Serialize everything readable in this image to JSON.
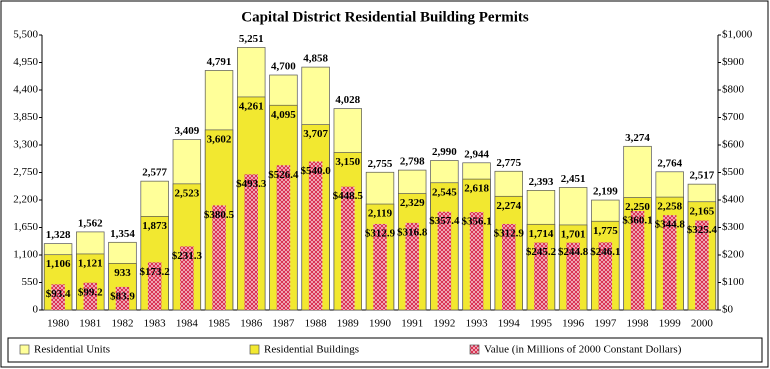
{
  "chart_data": {
    "type": "bar",
    "title": "Capital District Residential Building Permits",
    "categories": [
      "1980",
      "1981",
      "1982",
      "1983",
      "1984",
      "1985",
      "1986",
      "1987",
      "1988",
      "1989",
      "1990",
      "1991",
      "1992",
      "1993",
      "1994",
      "1995",
      "1996",
      "1997",
      "1998",
      "1999",
      "2000"
    ],
    "series": [
      {
        "name": "Residential Units",
        "color": "#ffff99",
        "values": [
          1328,
          1562,
          1354,
          2577,
          3409,
          4791,
          5251,
          4700,
          4858,
          4028,
          2755,
          2798,
          2990,
          2944,
          2775,
          2393,
          2451,
          2199,
          3274,
          2764,
          2517
        ],
        "value_labels": [
          "1,328",
          "1,562",
          "1,354",
          "2,577",
          "3,409",
          "4,791",
          "5,251",
          "4,700",
          "4,858",
          "4,028",
          "2,755",
          "2,798",
          "2,990",
          "2,944",
          "2,775",
          "2,393",
          "2,451",
          "2,199",
          "3,274",
          "2,764",
          "2,517"
        ]
      },
      {
        "name": "Residential Buildings",
        "color": "#f2e830",
        "values": [
          1106,
          1121,
          933,
          1873,
          2523,
          3602,
          4261,
          4095,
          3707,
          3150,
          2119,
          2329,
          2545,
          2618,
          2274,
          1714,
          1701,
          1775,
          2250,
          2258,
          2165
        ],
        "value_labels": [
          "1,106",
          "1,121",
          "933",
          "1,873",
          "2,523",
          "3,602",
          "4,261",
          "4,095",
          "3,707",
          "3,150",
          "2,119",
          "2,329",
          "2,545",
          "2,618",
          "2,274",
          "1,714",
          "1,701",
          "1,775",
          "2,250",
          "2,258",
          "2,165"
        ]
      },
      {
        "name": "Value (in Millions of 2000 Constant Dollars)",
        "color": "#d8284a",
        "axis": "y2",
        "values": [
          93.4,
          99.2,
          83.9,
          173.2,
          231.3,
          380.5,
          493.3,
          526.4,
          540.0,
          448.5,
          312.9,
          316.8,
          357.4,
          356.1,
          312.9,
          245.2,
          244.8,
          246.1,
          360.1,
          344.8,
          325.4
        ],
        "value_labels": [
          "$93.4",
          "$99.2",
          "$83.9",
          "$173.2",
          "$231.3",
          "$380.5",
          "$493.3",
          "$526.4",
          "$540.0",
          "$448.5",
          "$312.9",
          "$316.8",
          "$357.4",
          "$356.1",
          "$312.9",
          "$245.2",
          "$244.8",
          "$246.1",
          "$360.1",
          "$344.8",
          "$325.4"
        ]
      }
    ],
    "ylim": [
      0,
      5500
    ],
    "yticks": [
      0,
      550,
      {
        "value": 1100,
        "label": "1,100"
      },
      {
        "value": 1650,
        "label": "1,650"
      },
      {
        "value": 2200,
        "label": "2,200"
      },
      {
        "value": 2750,
        "label": "2,750"
      },
      {
        "value": 3300,
        "label": "3,300"
      },
      {
        "value": 3850,
        "label": "3,850"
      },
      {
        "value": 4400,
        "label": "4,400"
      },
      {
        "value": 4950,
        "label": "4,950"
      },
      {
        "value": 5500,
        "label": "5,500"
      }
    ],
    "y2lim": [
      0,
      1000
    ],
    "y2ticks": [
      {
        "value": 0,
        "label": "$0"
      },
      {
        "value": 100,
        "label": "$100"
      },
      {
        "value": 200,
        "label": "$200"
      },
      {
        "value": 300,
        "label": "$300"
      },
      {
        "value": 400,
        "label": "$400"
      },
      {
        "value": 500,
        "label": "$500"
      },
      {
        "value": 600,
        "label": "$600"
      },
      {
        "value": 700,
        "label": "$700"
      },
      {
        "value": 800,
        "label": "$800"
      },
      {
        "value": 900,
        "label": "$900"
      },
      {
        "value": 1000,
        "label": "$1,000"
      }
    ],
    "grid": false
  }
}
